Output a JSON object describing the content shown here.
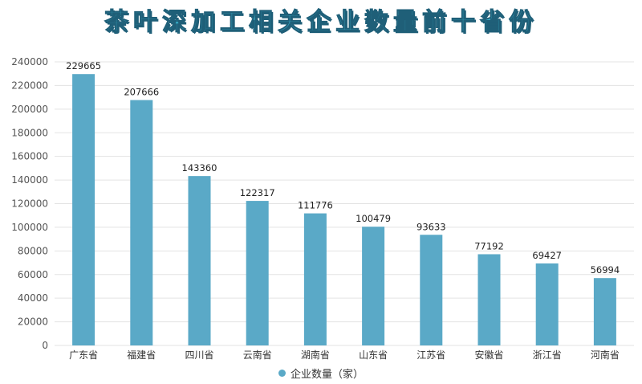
{
  "chart_data": {
    "type": "bar",
    "title": "茶叶深加工相关企业数量前十省份",
    "categories": [
      "广东省",
      "福建省",
      "四川省",
      "云南省",
      "湖南省",
      "山东省",
      "江苏省",
      "安徽省",
      "浙江省",
      "河南省"
    ],
    "series": [
      {
        "name": "企业数量（家）",
        "values": [
          229665,
          207666,
          143360,
          122317,
          111776,
          100479,
          93633,
          77192,
          69427,
          56994
        ],
        "color": "#5aa9c7"
      }
    ],
    "ylim": [
      0,
      240000
    ],
    "yticks": [
      0,
      20000,
      40000,
      60000,
      80000,
      100000,
      120000,
      140000,
      160000,
      180000,
      200000,
      220000,
      240000
    ],
    "grid": true,
    "legend_position": "bottom-center"
  },
  "colors": {
    "bar": "#5aa9c7",
    "title": "#36a9c4",
    "title_outline": "#1f5f78",
    "grid": "#e3e3e3"
  }
}
